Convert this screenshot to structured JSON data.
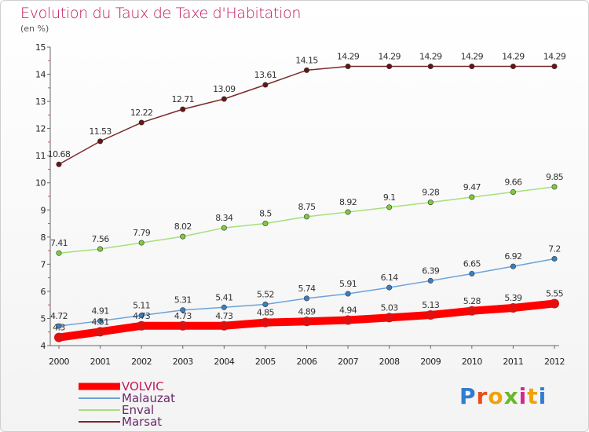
{
  "header": {
    "title": "Evolution du Taux de Taxe d'Habitation",
    "unit": "(en %)"
  },
  "logo": {
    "text": "Proxiti",
    "letter_colors": [
      "#2e7dd1",
      "#e84c1a",
      "#f0a20a",
      "#6ab82a",
      "#d22a8a",
      "#f0a20a",
      "#2e7dd1"
    ]
  },
  "chart_data": {
    "type": "line",
    "x": [
      2000,
      2001,
      2002,
      2003,
      2004,
      2005,
      2006,
      2007,
      2008,
      2009,
      2010,
      2011,
      2012
    ],
    "ylim": [
      4,
      15
    ],
    "yticks": [
      4,
      5,
      6,
      7,
      8,
      9,
      10,
      11,
      12,
      13,
      14,
      15
    ],
    "grid": false,
    "legend": "bottom-left",
    "series": [
      {
        "name": "VOLVIC",
        "color": "#ff0000",
        "marker_color": "#e01010",
        "width": 10,
        "values": [
          4.3,
          4.51,
          4.73,
          4.73,
          4.73,
          4.85,
          4.89,
          4.94,
          5.03,
          5.13,
          5.28,
          5.39,
          5.55
        ],
        "labels": [
          "4.3",
          "4.51",
          "4.73",
          "4.73",
          "4.73",
          "4.85",
          "4.89",
          "4.94",
          "5.03",
          "5.13",
          "5.28",
          "5.39",
          "5.55"
        ]
      },
      {
        "name": "Malauzat",
        "color": "#6aa3d8",
        "marker_color": "#3a7fc4",
        "width": 1.5,
        "values": [
          4.72,
          4.91,
          5.11,
          5.31,
          5.41,
          5.52,
          5.74,
          5.91,
          6.14,
          6.39,
          6.65,
          6.92,
          7.2
        ],
        "labels": [
          "4.72",
          "4.91",
          "5.11",
          "5.31",
          "5.41",
          "5.52",
          "5.74",
          "5.91",
          "6.14",
          "6.39",
          "6.65",
          "6.92",
          "7.2"
        ]
      },
      {
        "name": "Enval",
        "color": "#a6e07a",
        "marker_color": "#7ccc3c",
        "width": 1.5,
        "values": [
          7.41,
          7.56,
          7.79,
          8.02,
          8.34,
          8.5,
          8.75,
          8.92,
          9.1,
          9.28,
          9.47,
          9.66,
          9.85
        ],
        "labels": [
          "7.41",
          "7.56",
          "7.79",
          "8.02",
          "8.34",
          "8.5",
          "8.75",
          "8.92",
          "9.1",
          "9.28",
          "9.47",
          "9.66",
          "9.85"
        ]
      },
      {
        "name": "Marsat",
        "color": "#7a2a2a",
        "marker_color": "#6a1414",
        "width": 1.5,
        "values": [
          10.68,
          11.53,
          12.22,
          12.71,
          13.09,
          13.61,
          14.15,
          14.29,
          14.29,
          14.29,
          14.29,
          14.29,
          14.29
        ],
        "labels": [
          "10.68",
          "11.53",
          "12.22",
          "12.71",
          "13.09",
          "13.61",
          "14.15",
          "14.29",
          "14.29",
          "14.29",
          "14.29",
          "14.29",
          "14.29"
        ]
      }
    ]
  }
}
